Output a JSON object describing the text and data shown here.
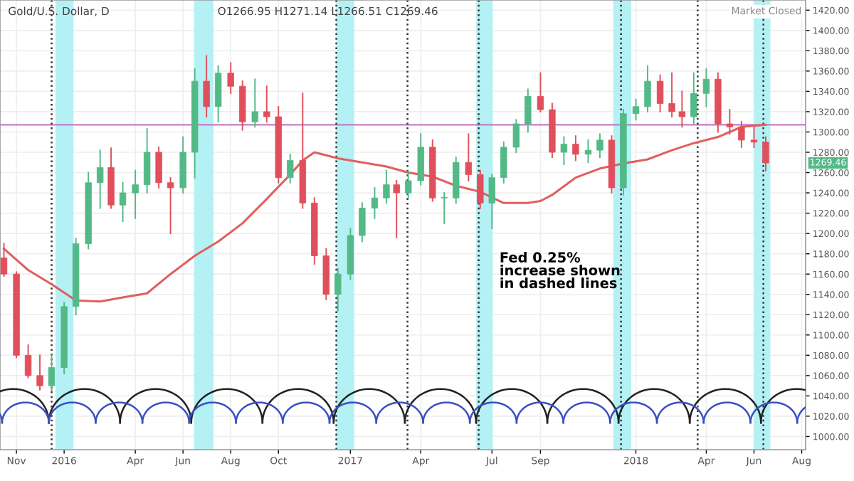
{
  "chart_data": {
    "type": "candlestick",
    "title": "Gold/U.S. Dollar, D",
    "subtitle": "O1266.95 H1271.14 L1266.51 C1269.46",
    "annotations": [
      "Market Closed",
      "Fed 0.25%\nincrease shown\nin dashed lines",
      "1269.46"
    ],
    "x": [
      "2015-10-16",
      "2015-11-01",
      "2015-11-16",
      "2015-12-01",
      "2015-12-16",
      "2016-01-01",
      "2016-01-16",
      "2016-02-01",
      "2016-02-16",
      "2016-03-01",
      "2016-03-16",
      "2016-04-01",
      "2016-04-16",
      "2016-05-01",
      "2016-05-16",
      "2016-06-01",
      "2016-06-16",
      "2016-07-01",
      "2016-07-16",
      "2016-08-01",
      "2016-08-16",
      "2016-09-01",
      "2016-09-16",
      "2016-10-01",
      "2016-10-16",
      "2016-11-01",
      "2016-11-16",
      "2016-12-01",
      "2016-12-16",
      "2017-01-01",
      "2017-01-16",
      "2017-02-01",
      "2017-02-16",
      "2017-03-01",
      "2017-03-16",
      "2017-04-01",
      "2017-04-16",
      "2017-05-01",
      "2017-05-16",
      "2017-06-01",
      "2017-06-16",
      "2017-07-01",
      "2017-07-16",
      "2017-08-01",
      "2017-08-16",
      "2017-09-01",
      "2017-09-16",
      "2017-10-01",
      "2017-10-16",
      "2017-11-01",
      "2017-11-16",
      "2017-12-01",
      "2017-12-16",
      "2018-01-01",
      "2018-01-16",
      "2018-02-01",
      "2018-02-16",
      "2018-03-01",
      "2018-03-16",
      "2018-04-01",
      "2018-04-16",
      "2018-05-01",
      "2018-05-16",
      "2018-06-01",
      "2018-06-16"
    ],
    "ohlc": [
      [
        1176,
        1190,
        1158,
        1160
      ],
      [
        1160,
        1162,
        1078,
        1080
      ],
      [
        1080,
        1090,
        1058,
        1060
      ],
      [
        1060,
        1080,
        1046,
        1050
      ],
      [
        1050,
        1080,
        1045,
        1068
      ],
      [
        1068,
        1132,
        1062,
        1128
      ],
      [
        1128,
        1195,
        1120,
        1190
      ],
      [
        1190,
        1260,
        1185,
        1250
      ],
      [
        1250,
        1282,
        1225,
        1265
      ],
      [
        1265,
        1284,
        1225,
        1228
      ],
      [
        1228,
        1250,
        1212,
        1240
      ],
      [
        1240,
        1262,
        1215,
        1248
      ],
      [
        1248,
        1303,
        1240,
        1280
      ],
      [
        1280,
        1285,
        1245,
        1250
      ],
      [
        1250,
        1255,
        1200,
        1245
      ],
      [
        1245,
        1295,
        1240,
        1280
      ],
      [
        1280,
        1362,
        1255,
        1350
      ],
      [
        1350,
        1375,
        1315,
        1325
      ],
      [
        1325,
        1365,
        1310,
        1358
      ],
      [
        1358,
        1368,
        1338,
        1345
      ],
      [
        1345,
        1350,
        1302,
        1310
      ],
      [
        1310,
        1352,
        1305,
        1320
      ],
      [
        1320,
        1345,
        1310,
        1315
      ],
      [
        1315,
        1325,
        1250,
        1255
      ],
      [
        1255,
        1278,
        1250,
        1272
      ],
      [
        1272,
        1338,
        1225,
        1230
      ],
      [
        1230,
        1235,
        1170,
        1178
      ],
      [
        1178,
        1185,
        1135,
        1140
      ],
      [
        1140,
        1165,
        1124,
        1160
      ],
      [
        1160,
        1205,
        1155,
        1198
      ],
      [
        1198,
        1230,
        1192,
        1225
      ],
      [
        1225,
        1245,
        1215,
        1235
      ],
      [
        1235,
        1262,
        1230,
        1248
      ],
      [
        1248,
        1252,
        1196,
        1240
      ],
      [
        1240,
        1262,
        1235,
        1252
      ],
      [
        1252,
        1298,
        1248,
        1285
      ],
      [
        1285,
        1292,
        1232,
        1235
      ],
      [
        1235,
        1240,
        1210,
        1235
      ],
      [
        1235,
        1275,
        1230,
        1270
      ],
      [
        1270,
        1298,
        1252,
        1258
      ],
      [
        1258,
        1262,
        1225,
        1230
      ],
      [
        1230,
        1258,
        1205,
        1255
      ],
      [
        1255,
        1290,
        1250,
        1285
      ],
      [
        1285,
        1312,
        1280,
        1308
      ],
      [
        1308,
        1342,
        1300,
        1335
      ],
      [
        1335,
        1358,
        1320,
        1322
      ],
      [
        1322,
        1328,
        1275,
        1280
      ],
      [
        1280,
        1295,
        1268,
        1288
      ],
      [
        1288,
        1296,
        1272,
        1278
      ],
      [
        1278,
        1292,
        1270,
        1282
      ],
      [
        1282,
        1298,
        1275,
        1292
      ],
      [
        1292,
        1296,
        1240,
        1245
      ],
      [
        1245,
        1322,
        1238,
        1318
      ],
      [
        1318,
        1332,
        1312,
        1325
      ],
      [
        1325,
        1365,
        1320,
        1350
      ],
      [
        1350,
        1356,
        1320,
        1328
      ],
      [
        1328,
        1358,
        1315,
        1320
      ],
      [
        1320,
        1340,
        1305,
        1315
      ],
      [
        1315,
        1358,
        1308,
        1338
      ],
      [
        1338,
        1362,
        1325,
        1352
      ],
      [
        1352,
        1358,
        1300,
        1308
      ],
      [
        1308,
        1322,
        1298,
        1305
      ],
      [
        1305,
        1310,
        1285,
        1292
      ],
      [
        1292,
        1305,
        1285,
        1290
      ],
      [
        1290,
        1295,
        1262,
        1269.46
      ]
    ],
    "series": [
      {
        "type": "line",
        "color": "#e0605e",
        "x": [
          "2015-10-16",
          "2015-11-16",
          "2015-12-16",
          "2016-01-16",
          "2016-02-16",
          "2016-03-16",
          "2016-04-16",
          "2016-05-16",
          "2016-06-16",
          "2016-07-16",
          "2016-08-16",
          "2016-09-16",
          "2016-10-16",
          "2016-11-01",
          "2016-11-16",
          "2016-12-16",
          "2017-01-16",
          "2017-02-16",
          "2017-03-16",
          "2017-04-16",
          "2017-05-16",
          "2017-06-16",
          "2017-07-16",
          "2017-08-16",
          "2017-09-01",
          "2017-09-16",
          "2017-10-16",
          "2017-11-16",
          "2017-12-16",
          "2018-01-16",
          "2018-02-16",
          "2018-03-16",
          "2018-04-16",
          "2018-05-16",
          "2018-06-16"
        ],
        "values": [
          1185,
          1164,
          1150,
          1134,
          1133,
          1137,
          1141,
          1160,
          1178,
          1192,
          1210,
          1234,
          1258,
          1272,
          1280,
          1274,
          1270,
          1266,
          1260,
          1256,
          1247,
          1241,
          1230,
          1230,
          1232,
          1238,
          1255,
          1264,
          1269,
          1273,
          1282,
          1289,
          1295,
          1305,
          1307
        ]
      }
    ],
    "ref_lines": [
      {
        "axis": "y",
        "value": 1307,
        "color": "#c77dca",
        "line_style": "solid"
      },
      {
        "axis": "x",
        "value": "2015-12-16",
        "color": "#333333",
        "line_style": "dotted"
      },
      {
        "axis": "x",
        "value": "2016-12-14",
        "color": "#333333",
        "line_style": "dotted"
      },
      {
        "axis": "x",
        "value": "2017-03-15",
        "color": "#333333",
        "line_style": "dotted"
      },
      {
        "axis": "x",
        "value": "2017-06-14",
        "color": "#333333",
        "line_style": "dotted"
      },
      {
        "axis": "x",
        "value": "2017-12-13",
        "color": "#333333",
        "line_style": "dotted"
      },
      {
        "axis": "x",
        "value": "2018-03-21",
        "color": "#333333",
        "line_style": "dotted"
      },
      {
        "axis": "x",
        "value": "2018-06-13",
        "color": "#333333",
        "line_style": "dotted"
      }
    ],
    "bands": [
      {
        "axis": "x",
        "from": "2015-12-21",
        "to": "2016-01-13",
        "color": "#b4f1f5"
      },
      {
        "axis": "x",
        "from": "2016-06-15",
        "to": "2016-07-10",
        "color": "#b4f1f5"
      },
      {
        "axis": "x",
        "from": "2016-12-14",
        "to": "2017-01-06",
        "color": "#b4f1f5"
      },
      {
        "axis": "x",
        "from": "2017-06-11",
        "to": "2017-07-02",
        "color": "#b4f1f5"
      },
      {
        "axis": "x",
        "from": "2017-12-03",
        "to": "2017-12-26",
        "color": "#b4f1f5"
      },
      {
        "axis": "x",
        "from": "2018-06-01",
        "to": "2018-06-22",
        "color": "#b4f1f5"
      }
    ],
    "xlim": [
      "2015-10-11",
      "2018-08-06"
    ],
    "xticks": [
      {
        "value": "2015-11-01",
        "label": "Nov"
      },
      {
        "value": "2016-01-01",
        "label": "2016"
      },
      {
        "value": "2016-04-01",
        "label": "Apr"
      },
      {
        "value": "2016-06-01",
        "label": "Jun"
      },
      {
        "value": "2016-08-01",
        "label": "Aug"
      },
      {
        "value": "2016-10-01",
        "label": "Oct"
      },
      {
        "value": "2017-01-01",
        "label": "2017"
      },
      {
        "value": "2017-04-01",
        "label": "Apr"
      },
      {
        "value": "2017-07-01",
        "label": "Jul"
      },
      {
        "value": "2017-09-01",
        "label": "Sep"
      },
      {
        "value": "2018-01-01",
        "label": "2018"
      },
      {
        "value": "2018-04-01",
        "label": "Apr"
      },
      {
        "value": "2018-06-01",
        "label": "Jun"
      },
      {
        "value": "2018-08-01",
        "label": "Aug"
      }
    ],
    "ylim": [
      987,
      1430
    ],
    "yticks": [
      {
        "value": 1000,
        "label": "1000.00"
      },
      {
        "value": 1020,
        "label": "1020.00"
      },
      {
        "value": 1040,
        "label": "1040.00"
      },
      {
        "value": 1060,
        "label": "1060.00"
      },
      {
        "value": 1080,
        "label": "1080.00"
      },
      {
        "value": 1100,
        "label": "1100.00"
      },
      {
        "value": 1120,
        "label": "1120.00"
      },
      {
        "value": 1140,
        "label": "1140.00"
      },
      {
        "value": 1160,
        "label": "1160.00"
      },
      {
        "value": 1180,
        "label": "1180.00"
      },
      {
        "value": 1200,
        "label": "1200.00"
      },
      {
        "value": 1220,
        "label": "1220.00"
      },
      {
        "value": 1240,
        "label": "1240.00"
      },
      {
        "value": 1260,
        "label": "1260.00"
      },
      {
        "value": 1280,
        "label": "1280.00"
      },
      {
        "value": 1300,
        "label": "1300.00"
      },
      {
        "value": 1320,
        "label": "1320.00"
      },
      {
        "value": 1340,
        "label": "1340.00"
      },
      {
        "value": 1360,
        "label": "1360.00"
      },
      {
        "value": 1380,
        "label": "1380.00"
      },
      {
        "value": 1400,
        "label": "1400.00"
      },
      {
        "value": 1420,
        "label": "1420.00"
      }
    ],
    "grid": true,
    "legend": false
  }
}
